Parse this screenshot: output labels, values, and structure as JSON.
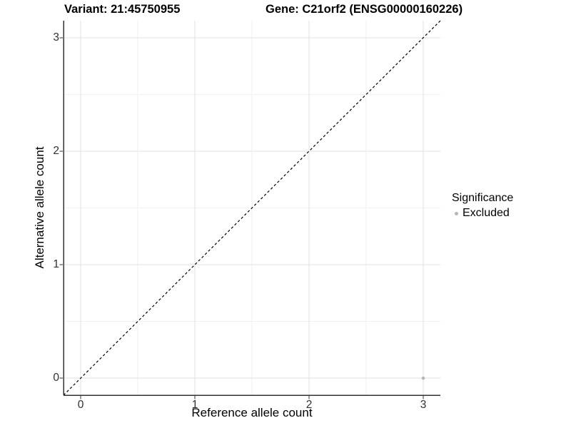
{
  "header": {
    "variant_title": "Variant: 21:45750955",
    "gene_title": "Gene: C21orf2 (ENSG00000160226)"
  },
  "chart_data": {
    "type": "scatter",
    "xlabel": "Reference allele count",
    "ylabel": "Alternative allele count",
    "xlim": [
      -0.15,
      3.15
    ],
    "ylim": [
      -0.15,
      3.15
    ],
    "xticks": [
      0,
      1,
      2,
      3
    ],
    "yticks": [
      0,
      1,
      2,
      3
    ],
    "minor_xticks": [
      0.5,
      1.5,
      2.5
    ],
    "minor_yticks": [
      0.5,
      1.5,
      2.5
    ],
    "grid": "on",
    "reference_line": {
      "kind": "identity",
      "from": [
        -0.15,
        -0.15
      ],
      "to": [
        3.15,
        3.15
      ],
      "style": "dashed",
      "color": "#000000"
    },
    "series": [
      {
        "name": "Excluded",
        "color": "#b5b5b5",
        "points": [
          {
            "x": 3,
            "y": 0
          }
        ]
      }
    ],
    "legend": {
      "title": "Significance",
      "position": "right",
      "entries": [
        {
          "label": "Excluded",
          "color": "#b5b5b5"
        }
      ]
    },
    "colors": {
      "background": "#ffffff",
      "grid_major": "#e2e2e2",
      "grid_minor": "#f0f0f0",
      "axis_line": "#333333",
      "tick_mark": "#333333",
      "tick_text": "#303030"
    }
  }
}
